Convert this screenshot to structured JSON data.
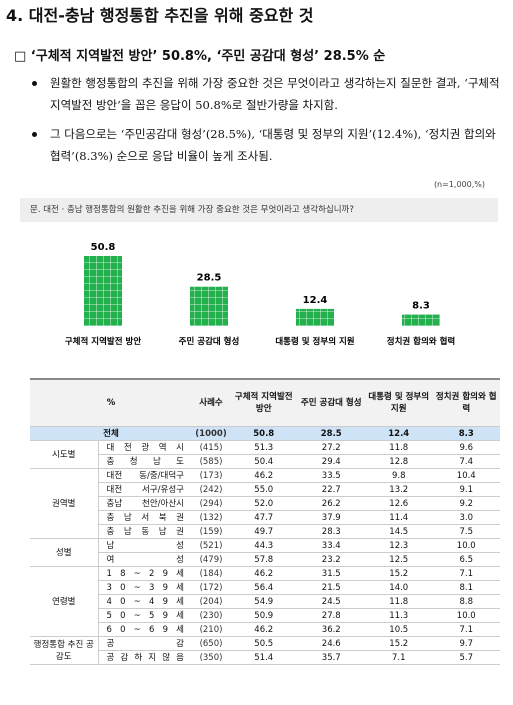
{
  "header": {
    "title": "4. 대전-충남 행정통합 추진을 위해 중요한 것",
    "summary": "□ ‘구체적 지역발전 방안’ 50.8%, ‘주민 공감대 형성’ 28.5% 순"
  },
  "bullets": [
    "원활한 행정통합의 추진을 위해 가장 중요한 것은 무엇이라고 생각하는지 질문한 결과, ‘구체적 지역발전 방안’을 꼽은 응답이 50.8%로 절반가량을 차지함.",
    "그 다음으로는 ‘주민공감대 형성’(28.5%), ‘대통령 및 정부의 지원’(12.4%), ‘정치권 합의와 협력’(8.3%) 순으로 응답 비율이 높게 조사됨."
  ],
  "note": "(n=1,000,%)",
  "question": "문. 대전 · 충남 행정통합의 원활한 추진을 위해 가장 중요한 것은 무엇이라고 생각하십니까?",
  "chart_data": {
    "type": "bar",
    "color": "#22b14c",
    "categories": [
      "구체적 지역발전 방안",
      "주민 공감대 형성",
      "대통령 및 정부의 지원",
      "정치권 합의와 협력"
    ],
    "values": [
      50.8,
      28.5,
      12.4,
      8.3
    ]
  },
  "table": {
    "header": [
      "%",
      "사례수",
      "구체적 지역발전 방안",
      "주민 공감대 형성",
      "대통령 및 정부의 지원",
      "정치권 합의와 협력"
    ],
    "total": {
      "label": "전체",
      "cells": [
        "(1000)",
        "50.8",
        "28.5",
        "12.4",
        "8.3"
      ]
    },
    "groups": [
      {
        "label": "시도별",
        "rows": [
          {
            "label": "대 전 광 역 시",
            "cells": [
              "(415)",
              "51.3",
              "27.2",
              "11.8",
              "9.6"
            ]
          },
          {
            "label": "충 청 남 도",
            "cells": [
              "(585)",
              "50.4",
              "29.4",
              "12.8",
              "7.4"
            ]
          }
        ]
      },
      {
        "label": "권역별",
        "rows": [
          {
            "label": "대전 동/중/대덕구",
            "cells": [
              "(173)",
              "46.2",
              "33.5",
              "9.8",
              "10.4"
            ]
          },
          {
            "label": "대전 서구/유성구",
            "cells": [
              "(242)",
              "55.0",
              "22.7",
              "13.2",
              "9.1"
            ]
          },
          {
            "label": "충남 천안/아산시",
            "cells": [
              "(294)",
              "52.0",
              "26.2",
              "12.6",
              "9.2"
            ]
          },
          {
            "label": "충 남 서 북 권",
            "cells": [
              "(132)",
              "47.7",
              "37.9",
              "11.4",
              "3.0"
            ]
          },
          {
            "label": "충 남 동 남 권",
            "cells": [
              "(159)",
              "49.7",
              "28.3",
              "14.5",
              "7.5"
            ]
          }
        ]
      },
      {
        "label": "성별",
        "rows": [
          {
            "label": "남 성",
            "cells": [
              "(521)",
              "44.3",
              "33.4",
              "12.3",
              "10.0"
            ]
          },
          {
            "label": "여 성",
            "cells": [
              "(479)",
              "57.8",
              "23.2",
              "12.5",
              "6.5"
            ]
          }
        ]
      },
      {
        "label": "연령별",
        "rows": [
          {
            "label": "1 8 ~ 2 9 세",
            "cells": [
              "(184)",
              "46.2",
              "31.5",
              "15.2",
              "7.1"
            ]
          },
          {
            "label": "3 0 ~ 3 9 세",
            "cells": [
              "(172)",
              "56.4",
              "21.5",
              "14.0",
              "8.1"
            ]
          },
          {
            "label": "4 0 ~ 4 9 세",
            "cells": [
              "(204)",
              "54.9",
              "24.5",
              "11.8",
              "8.8"
            ]
          },
          {
            "label": "5 0 ~ 5 9 세",
            "cells": [
              "(230)",
              "50.9",
              "27.8",
              "11.3",
              "10.0"
            ]
          },
          {
            "label": "6 0 ~ 6 9 세",
            "cells": [
              "(210)",
              "46.2",
              "36.2",
              "10.5",
              "7.1"
            ]
          }
        ]
      },
      {
        "label": "행정통합 추진 공감도",
        "rows": [
          {
            "label": "공 감",
            "cells": [
              "(650)",
              "50.5",
              "24.6",
              "15.2",
              "9.7"
            ]
          },
          {
            "label": "공 감 하 지 않 음",
            "cells": [
              "(350)",
              "51.4",
              "35.7",
              "7.1",
              "5.7"
            ]
          }
        ]
      }
    ]
  }
}
